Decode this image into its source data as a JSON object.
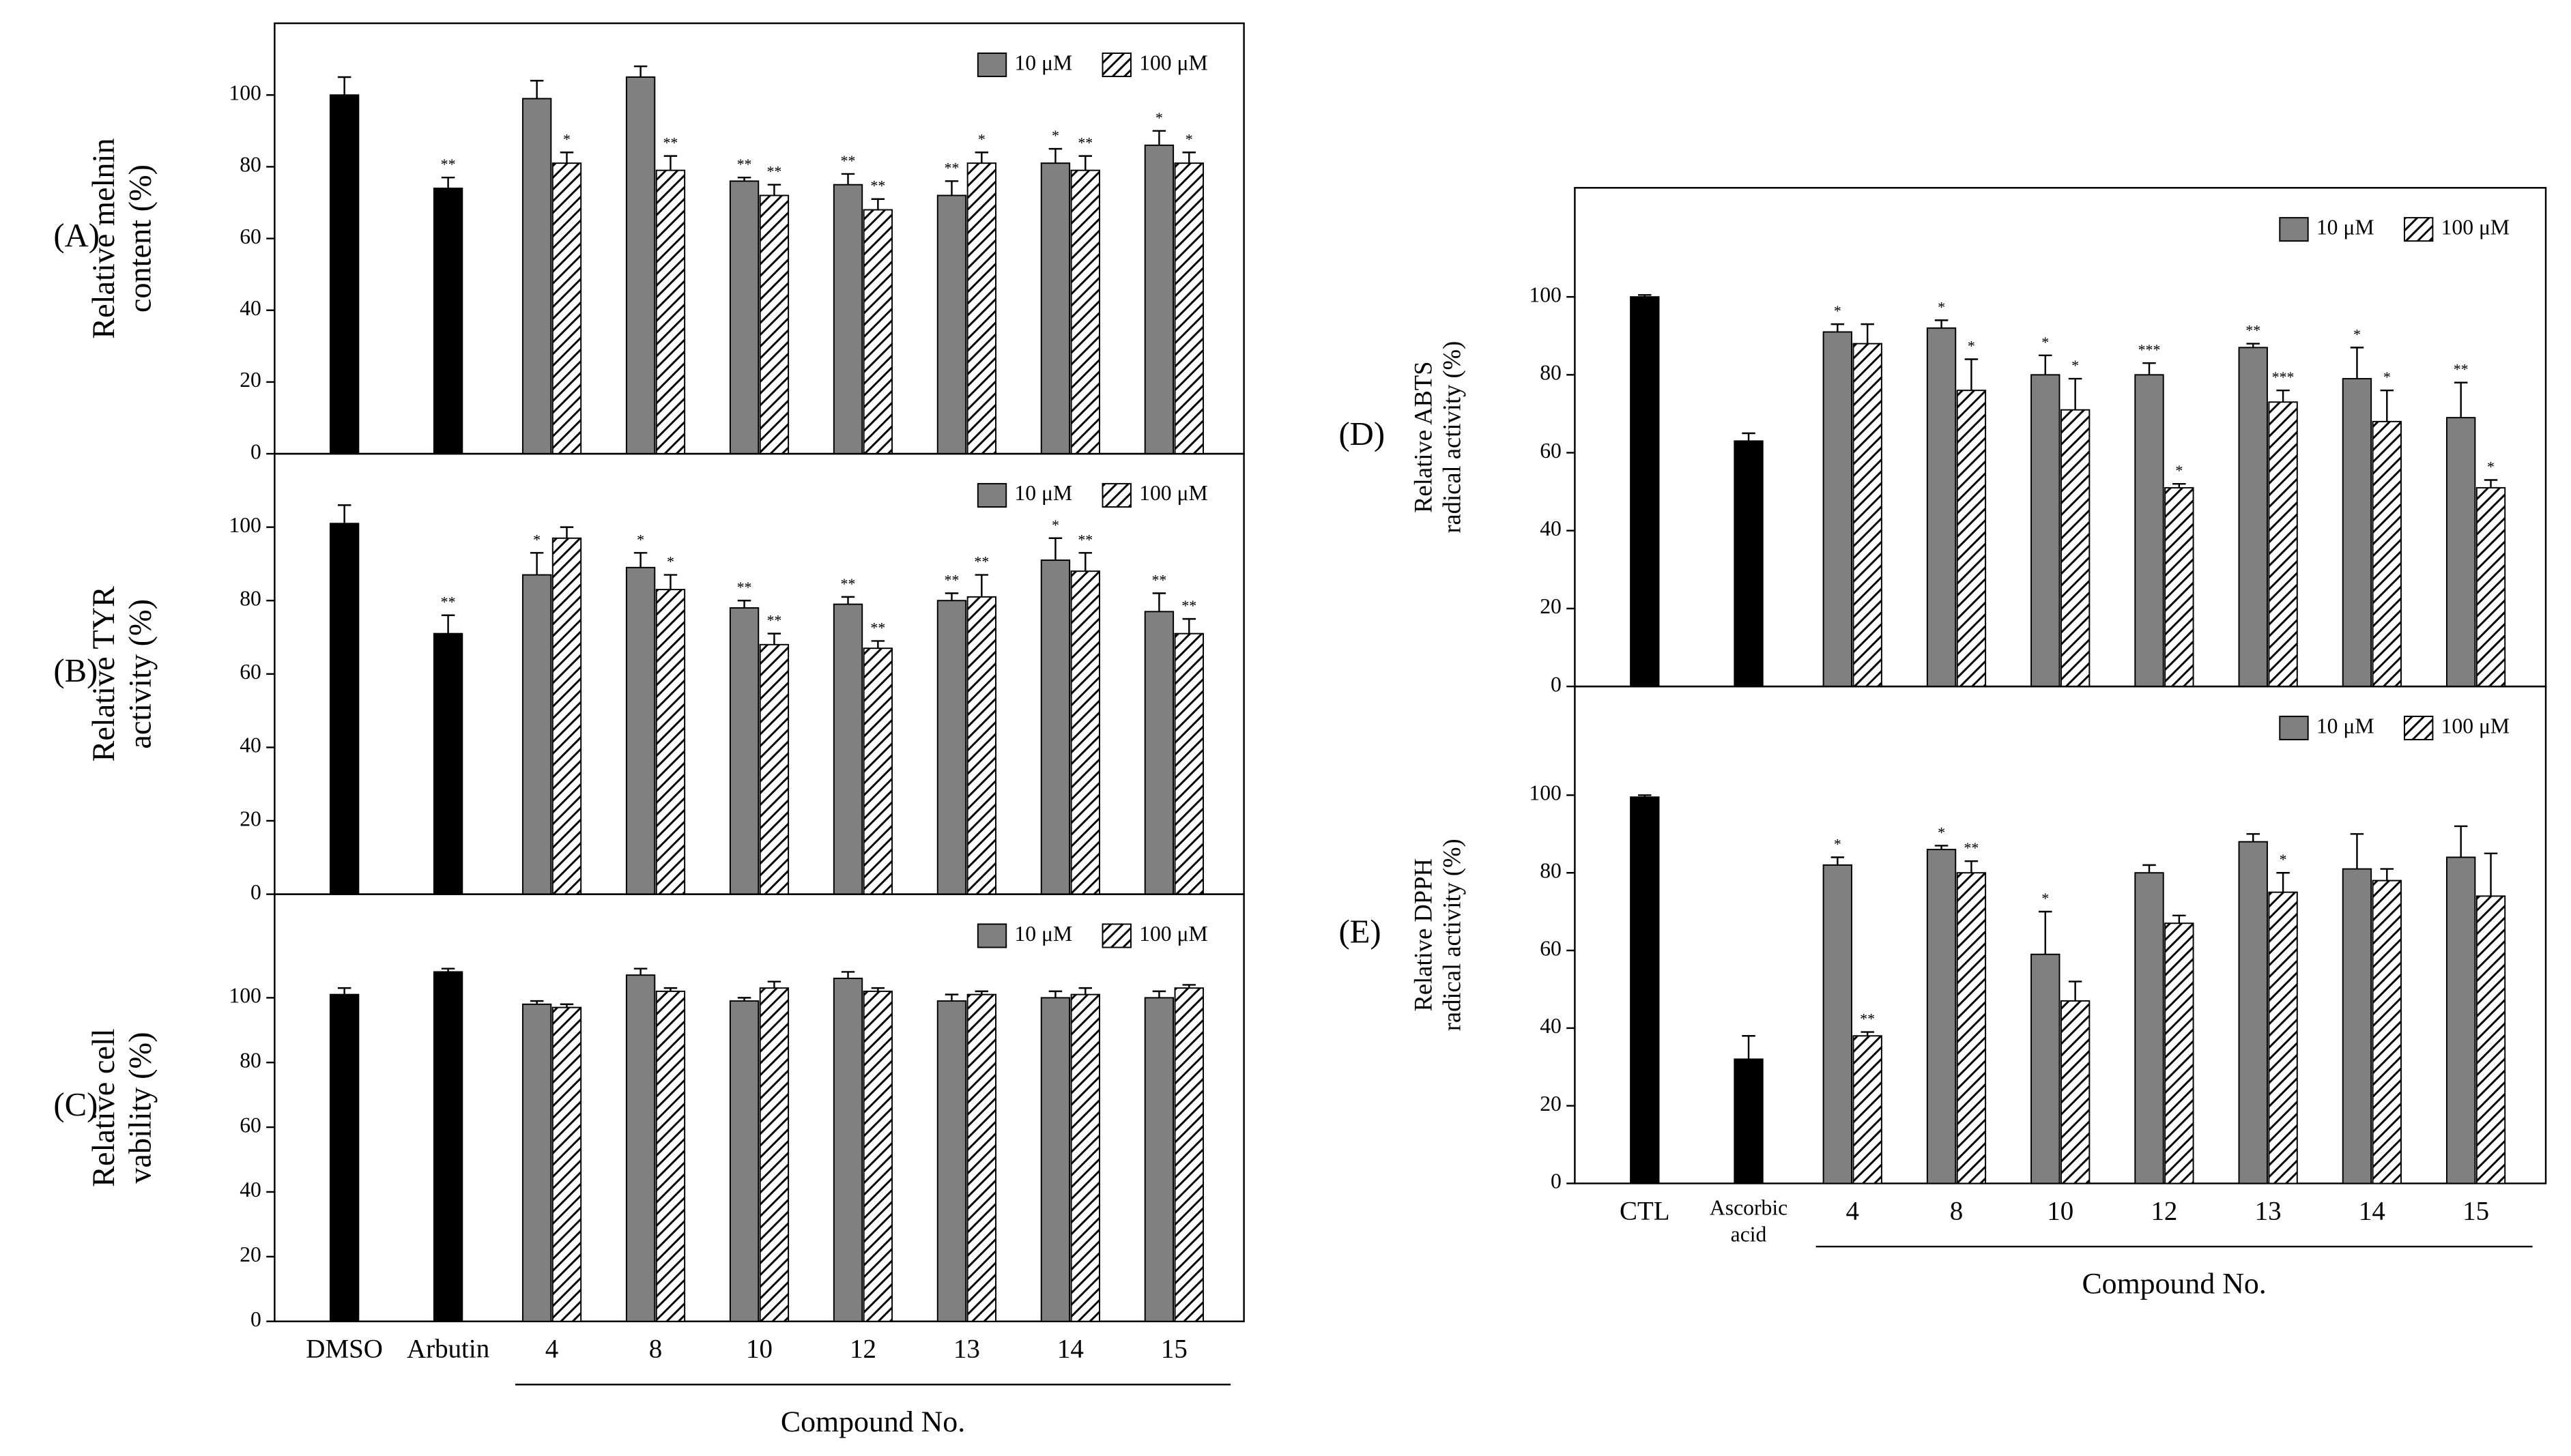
{
  "chart_data": [
    {
      "type": "bar",
      "panel_label": "(A)",
      "ylabel": [
        "Relative melnin",
        "content (%)"
      ],
      "ylim": [
        0,
        120
      ],
      "yticks": [
        0,
        20,
        40,
        60,
        80,
        100
      ],
      "legend": "upper right",
      "series": [
        {
          "color": "#000000",
          "values": [
            100,
            74,
            null,
            null,
            null,
            null,
            null,
            null,
            null
          ],
          "errors": [
            5,
            3,
            null,
            null,
            null,
            null,
            null,
            null,
            null
          ],
          "annotations": [
            null,
            "**",
            null,
            null,
            null,
            null,
            null,
            null,
            null
          ]
        },
        {
          "name": "10 μM",
          "color": "#808080",
          "values": [
            null,
            null,
            99,
            105,
            76,
            75,
            72,
            81,
            86
          ],
          "errors": [
            null,
            null,
            5,
            3,
            1,
            3,
            4,
            4,
            4
          ],
          "annotations": [
            null,
            null,
            null,
            null,
            "**",
            "**",
            "**",
            "*",
            "*"
          ]
        },
        {
          "name": "100 μM",
          "color": "#000000",
          "hatch": "diagonal",
          "values": [
            null,
            null,
            81,
            79,
            72,
            68,
            81,
            79,
            81
          ],
          "errors": [
            null,
            null,
            3,
            4,
            3,
            3,
            3,
            4,
            3
          ],
          "annotations": [
            null,
            null,
            "*",
            "**",
            "**",
            "**",
            "*",
            "**",
            "*"
          ]
        }
      ]
    },
    {
      "type": "bar",
      "panel_label": "(B)",
      "ylabel": [
        "Relative TYR",
        "activity (%)"
      ],
      "ylim": [
        0,
        120
      ],
      "yticks": [
        0,
        20,
        40,
        60,
        80,
        100
      ],
      "legend": "upper right",
      "series": [
        {
          "color": "#000000",
          "values": [
            101,
            71,
            null,
            null,
            null,
            null,
            null,
            null,
            null
          ],
          "errors": [
            5,
            5,
            null,
            null,
            null,
            null,
            null,
            null,
            null
          ],
          "annotations": [
            null,
            "**",
            null,
            null,
            null,
            null,
            null,
            null,
            null
          ]
        },
        {
          "name": "10 μM",
          "color": "#808080",
          "values": [
            null,
            null,
            87,
            89,
            78,
            79,
            80,
            91,
            77
          ],
          "errors": [
            null,
            null,
            6,
            4,
            2,
            2,
            2,
            6,
            5
          ],
          "annotations": [
            null,
            null,
            "*",
            "*",
            "**",
            "**",
            "**",
            "*",
            "**"
          ]
        },
        {
          "name": "100 μM",
          "color": "#000000",
          "hatch": "diagonal",
          "values": [
            null,
            null,
            97,
            83,
            68,
            67,
            81,
            88,
            71
          ],
          "errors": [
            null,
            null,
            3,
            4,
            3,
            2,
            6,
            5,
            4
          ],
          "annotations": [
            null,
            null,
            null,
            "*",
            "**",
            "**",
            "**",
            "**",
            "**"
          ]
        }
      ]
    },
    {
      "type": "bar",
      "panel_label": "(C)",
      "ylabel": [
        "Relative cell",
        "vability (%)"
      ],
      "ylim": [
        0,
        132
      ],
      "yticks": [
        0,
        20,
        40,
        60,
        80,
        100
      ],
      "legend": "upper right",
      "categories": [
        "DMSO",
        "Arbutin",
        "4",
        "8",
        "10",
        "12",
        "13",
        "14",
        "15"
      ],
      "xlabel": "Compound No.",
      "series": [
        {
          "color": "#000000",
          "values": [
            101,
            108,
            null,
            null,
            null,
            null,
            null,
            null,
            null
          ],
          "errors": [
            2,
            1,
            null,
            null,
            null,
            null,
            null,
            null,
            null
          ]
        },
        {
          "name": "10 μM",
          "color": "#808080",
          "values": [
            null,
            null,
            98,
            107,
            99,
            106,
            99,
            100,
            100
          ],
          "errors": [
            null,
            null,
            1,
            2,
            1,
            2,
            2,
            2,
            2
          ]
        },
        {
          "name": "100 μM",
          "color": "#000000",
          "hatch": "diagonal",
          "values": [
            null,
            null,
            97,
            102,
            103,
            102,
            101,
            101,
            103
          ],
          "errors": [
            null,
            null,
            1,
            1,
            2,
            1,
            1,
            2,
            1
          ]
        }
      ]
    },
    {
      "type": "bar",
      "panel_label": "(D)",
      "ylabel": [
        "Relative ABTS",
        "radical activity (%)"
      ],
      "ylim": [
        0,
        128
      ],
      "yticks": [
        0,
        20,
        40,
        60,
        80,
        100
      ],
      "legend": "upper right",
      "series": [
        {
          "color": "#000000",
          "values": [
            100,
            63,
            null,
            null,
            null,
            null,
            null,
            null,
            null
          ],
          "errors": [
            0.5,
            2,
            null,
            null,
            null,
            null,
            null,
            null,
            null
          ]
        },
        {
          "name": "10 μM",
          "color": "#808080",
          "values": [
            null,
            null,
            91,
            92,
            80,
            80,
            87,
            79,
            69
          ],
          "errors": [
            null,
            null,
            2,
            2,
            5,
            3,
            1,
            8,
            9
          ],
          "annotations": [
            null,
            null,
            "*",
            "*",
            "*",
            "***",
            "**",
            "*",
            "**"
          ]
        },
        {
          "name": "100 μM",
          "color": "#000000",
          "hatch": "diagonal",
          "values": [
            null,
            null,
            88,
            76,
            71,
            51,
            73,
            68,
            51
          ],
          "errors": [
            null,
            null,
            5,
            8,
            8,
            1,
            3,
            8,
            2
          ],
          "annotations": [
            null,
            null,
            null,
            "*",
            "*",
            "*",
            "***",
            "*",
            "*"
          ]
        }
      ]
    },
    {
      "type": "bar",
      "panel_label": "(E)",
      "ylabel": [
        "Relative DPPH",
        "radical activity (%)"
      ],
      "ylim": [
        0,
        128
      ],
      "yticks": [
        0,
        20,
        40,
        60,
        80,
        100
      ],
      "legend": "upper right",
      "categories": [
        "CTL",
        "Ascorbic acid",
        "4",
        "8",
        "10",
        "12",
        "13",
        "14",
        "15"
      ],
      "xlabel": "Compound No.",
      "series": [
        {
          "color": "#000000",
          "values": [
            99.5,
            32,
            null,
            null,
            null,
            null,
            null,
            null,
            null
          ],
          "errors": [
            0.5,
            6,
            null,
            null,
            null,
            null,
            null,
            null,
            null
          ]
        },
        {
          "name": "10 μM",
          "color": "#808080",
          "values": [
            null,
            null,
            82,
            86,
            59,
            80,
            88,
            81,
            84
          ],
          "errors": [
            null,
            null,
            2,
            1,
            11,
            2,
            2,
            9,
            8
          ],
          "annotations": [
            null,
            null,
            "*",
            "*",
            "*",
            null,
            null,
            null,
            null
          ]
        },
        {
          "name": "100 μM",
          "color": "#000000",
          "hatch": "diagonal",
          "values": [
            null,
            null,
            38,
            80,
            47,
            67,
            75,
            78,
            74
          ],
          "errors": [
            null,
            null,
            1,
            3,
            5,
            2,
            5,
            3,
            11
          ],
          "annotations": [
            null,
            null,
            "**",
            "**",
            null,
            null,
            "*",
            null,
            null
          ]
        }
      ]
    }
  ]
}
